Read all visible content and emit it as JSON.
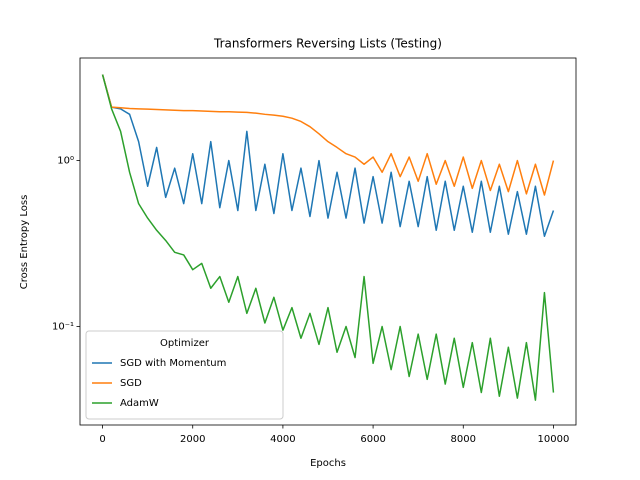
{
  "chart_data": {
    "type": "line",
    "title": "Transformers Reversing Lists (Testing)",
    "x_label": "Epochs",
    "y_label": "Cross Entropy Loss",
    "y_scale": "log",
    "x": [
      0,
      200,
      400,
      600,
      800,
      1000,
      1200,
      1400,
      1600,
      1800,
      2000,
      2200,
      2400,
      2600,
      2800,
      3000,
      3200,
      3400,
      3600,
      3800,
      4000,
      4200,
      4400,
      4600,
      4800,
      5000,
      5200,
      5400,
      5600,
      5800,
      6000,
      6200,
      6400,
      6600,
      6800,
      7000,
      7200,
      7400,
      7600,
      7800,
      8000,
      8200,
      8400,
      8600,
      8800,
      9000,
      9200,
      9400,
      9600,
      9800,
      10000
    ],
    "series": [
      {
        "name": "SGD with Momentum",
        "color": "#1f77b4",
        "values": [
          3.3,
          2.1,
          2.05,
          1.9,
          1.3,
          0.7,
          1.2,
          0.6,
          0.9,
          0.55,
          1.1,
          0.55,
          1.3,
          0.52,
          1.0,
          0.5,
          1.5,
          0.5,
          0.95,
          0.48,
          1.1,
          0.5,
          0.9,
          0.46,
          1.0,
          0.45,
          0.85,
          0.45,
          0.9,
          0.42,
          0.8,
          0.42,
          0.85,
          0.4,
          0.75,
          0.4,
          0.8,
          0.38,
          0.75,
          0.38,
          0.7,
          0.37,
          0.75,
          0.37,
          0.7,
          0.36,
          0.65,
          0.36,
          0.7,
          0.35,
          0.5
        ]
      },
      {
        "name": "SGD",
        "color": "#ff7f0e",
        "values": [
          3.3,
          2.1,
          2.08,
          2.06,
          2.05,
          2.04,
          2.03,
          2.02,
          2.01,
          2.0,
          2.0,
          1.99,
          1.98,
          1.97,
          1.97,
          1.96,
          1.95,
          1.93,
          1.9,
          1.88,
          1.85,
          1.8,
          1.72,
          1.6,
          1.45,
          1.3,
          1.2,
          1.1,
          1.05,
          0.95,
          1.05,
          0.85,
          1.1,
          0.8,
          1.05,
          0.75,
          1.1,
          0.72,
          1.0,
          0.7,
          1.05,
          0.68,
          1.0,
          0.66,
          0.95,
          0.65,
          1.0,
          0.63,
          0.95,
          0.62,
          1.0
        ]
      },
      {
        "name": "AdamW",
        "color": "#2ca02c",
        "values": [
          3.3,
          2.05,
          1.5,
          0.85,
          0.55,
          0.45,
          0.38,
          0.33,
          0.28,
          0.27,
          0.22,
          0.24,
          0.17,
          0.2,
          0.14,
          0.2,
          0.12,
          0.17,
          0.105,
          0.15,
          0.095,
          0.13,
          0.085,
          0.12,
          0.078,
          0.13,
          0.07,
          0.1,
          0.065,
          0.2,
          0.06,
          0.1,
          0.055,
          0.1,
          0.05,
          0.09,
          0.048,
          0.09,
          0.045,
          0.085,
          0.043,
          0.08,
          0.04,
          0.085,
          0.038,
          0.075,
          0.037,
          0.08,
          0.036,
          0.16,
          0.04
        ]
      }
    ],
    "xlim": [
      -500,
      10500
    ],
    "xticks": [
      0,
      2000,
      4000,
      6000,
      8000,
      10000
    ],
    "ylim": [
      0.0255,
      4.15
    ],
    "yticks": [
      {
        "value": 1,
        "label": "10⁰"
      },
      {
        "value": 0.1,
        "label": "10⁻¹"
      }
    ],
    "legend_title": "Optimizer",
    "legend_position": "lower left"
  }
}
